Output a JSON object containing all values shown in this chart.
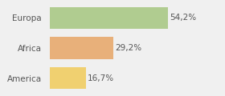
{
  "categories": [
    "Europa",
    "Africa",
    "America"
  ],
  "values": [
    54.2,
    29.2,
    16.7
  ],
  "bar_colors": [
    "#b0cc90",
    "#e8b07a",
    "#f0d070"
  ],
  "labels": [
    "54,2%",
    "29,2%",
    "16,7%"
  ],
  "background_color": "#f0f0f0",
  "xlim": [
    0,
    68
  ],
  "bar_height": 0.72,
  "label_fontsize": 7.5,
  "tick_fontsize": 7.5,
  "label_color": "#555555",
  "tick_color": "#555555"
}
